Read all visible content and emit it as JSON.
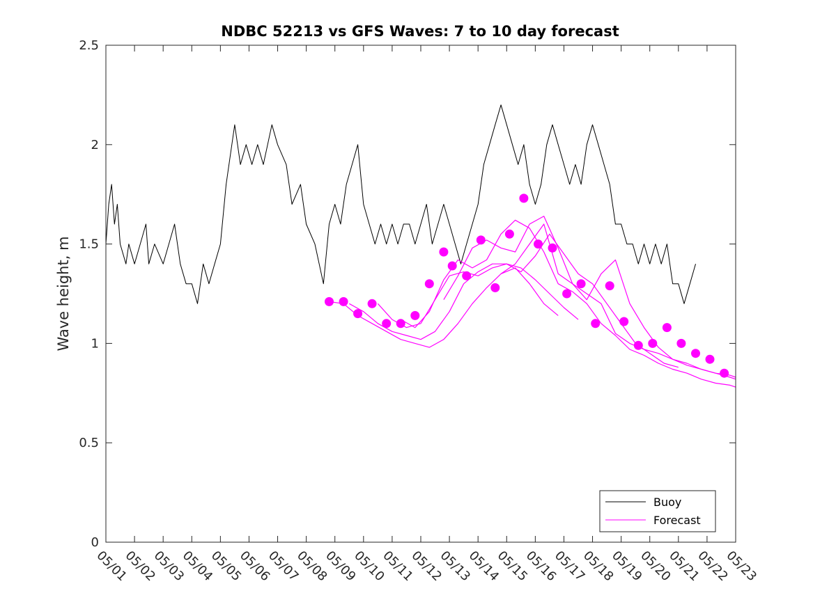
{
  "chart_data": {
    "type": "line",
    "title": "NDBC 52213 vs GFS Waves: 7 to 10 day forecast",
    "xlabel": "",
    "ylabel": "Wave height, m",
    "xlim": [
      0,
      22
    ],
    "ylim": [
      0,
      2.5
    ],
    "x_tick_labels": [
      "05/01",
      "05/02",
      "05/03",
      "05/04",
      "05/05",
      "05/06",
      "05/07",
      "05/08",
      "05/09",
      "05/10",
      "05/11",
      "05/12",
      "05/13",
      "05/14",
      "05/15",
      "05/16",
      "05/17",
      "05/18",
      "05/19",
      "05/20",
      "05/21",
      "05/22",
      "05/23"
    ],
    "y_ticks": [
      0,
      0.5,
      1,
      1.5,
      2,
      2.5
    ],
    "y_tick_labels": [
      "0",
      "0.5",
      "1",
      "1.5",
      "2",
      "2.5"
    ],
    "grid": false,
    "legend_position": "bottom-right",
    "series": [
      {
        "name": "Buoy",
        "color": "#000000",
        "style": "line",
        "points": [
          [
            0,
            1.5
          ],
          [
            0.1,
            1.7
          ],
          [
            0.2,
            1.8
          ],
          [
            0.3,
            1.6
          ],
          [
            0.4,
            1.7
          ],
          [
            0.5,
            1.5
          ],
          [
            0.7,
            1.4
          ],
          [
            0.8,
            1.5
          ],
          [
            1,
            1.4
          ],
          [
            1.2,
            1.5
          ],
          [
            1.4,
            1.6
          ],
          [
            1.5,
            1.4
          ],
          [
            1.7,
            1.5
          ],
          [
            2,
            1.4
          ],
          [
            2.2,
            1.5
          ],
          [
            2.4,
            1.6
          ],
          [
            2.6,
            1.4
          ],
          [
            2.8,
            1.3
          ],
          [
            3,
            1.3
          ],
          [
            3.2,
            1.2
          ],
          [
            3.4,
            1.4
          ],
          [
            3.6,
            1.3
          ],
          [
            3.8,
            1.4
          ],
          [
            4,
            1.5
          ],
          [
            4.2,
            1.8
          ],
          [
            4.4,
            2.0
          ],
          [
            4.5,
            2.1
          ],
          [
            4.7,
            1.9
          ],
          [
            4.9,
            2.0
          ],
          [
            5.1,
            1.9
          ],
          [
            5.3,
            2.0
          ],
          [
            5.5,
            1.9
          ],
          [
            5.8,
            2.1
          ],
          [
            6,
            2.0
          ],
          [
            6.3,
            1.9
          ],
          [
            6.5,
            1.7
          ],
          [
            6.8,
            1.8
          ],
          [
            7,
            1.6
          ],
          [
            7.3,
            1.5
          ],
          [
            7.6,
            1.3
          ],
          [
            7.8,
            1.6
          ],
          [
            8,
            1.7
          ],
          [
            8.2,
            1.6
          ],
          [
            8.4,
            1.8
          ],
          [
            8.6,
            1.9
          ],
          [
            8.8,
            2.0
          ],
          [
            9,
            1.7
          ],
          [
            9.2,
            1.6
          ],
          [
            9.4,
            1.5
          ],
          [
            9.6,
            1.6
          ],
          [
            9.8,
            1.5
          ],
          [
            10,
            1.6
          ],
          [
            10.2,
            1.5
          ],
          [
            10.4,
            1.6
          ],
          [
            10.6,
            1.6
          ],
          [
            10.8,
            1.5
          ],
          [
            11,
            1.6
          ],
          [
            11.2,
            1.7
          ],
          [
            11.4,
            1.5
          ],
          [
            11.6,
            1.6
          ],
          [
            11.8,
            1.7
          ],
          [
            12,
            1.6
          ],
          [
            12.2,
            1.5
          ],
          [
            12.4,
            1.4
          ],
          [
            12.6,
            1.5
          ],
          [
            12.8,
            1.6
          ],
          [
            13,
            1.7
          ],
          [
            13.2,
            1.9
          ],
          [
            13.4,
            2.0
          ],
          [
            13.6,
            2.1
          ],
          [
            13.8,
            2.2
          ],
          [
            14,
            2.1
          ],
          [
            14.2,
            2.0
          ],
          [
            14.4,
            1.9
          ],
          [
            14.6,
            2.0
          ],
          [
            14.8,
            1.8
          ],
          [
            15,
            1.7
          ],
          [
            15.2,
            1.8
          ],
          [
            15.4,
            2.0
          ],
          [
            15.6,
            2.1
          ],
          [
            15.8,
            2.0
          ],
          [
            16,
            1.9
          ],
          [
            16.2,
            1.8
          ],
          [
            16.4,
            1.9
          ],
          [
            16.6,
            1.8
          ],
          [
            16.8,
            2.0
          ],
          [
            17,
            2.1
          ],
          [
            17.2,
            2.0
          ],
          [
            17.4,
            1.9
          ],
          [
            17.6,
            1.8
          ],
          [
            17.8,
            1.6
          ],
          [
            18,
            1.6
          ],
          [
            18.2,
            1.5
          ],
          [
            18.4,
            1.5
          ],
          [
            18.6,
            1.4
          ],
          [
            18.8,
            1.5
          ],
          [
            19,
            1.4
          ],
          [
            19.2,
            1.5
          ],
          [
            19.4,
            1.4
          ],
          [
            19.6,
            1.5
          ],
          [
            19.8,
            1.3
          ],
          [
            20,
            1.3
          ],
          [
            20.2,
            1.2
          ],
          [
            20.4,
            1.3
          ],
          [
            20.6,
            1.4
          ]
        ]
      },
      {
        "name": "Forecast",
        "color": "#ff00ff",
        "style": "lines+markers",
        "traces": [
          [
            [
              7.8,
              1.21
            ],
            [
              8.3,
              1.2
            ],
            [
              8.8,
              1.14
            ],
            [
              9.3,
              1.1
            ],
            [
              9.8,
              1.06
            ],
            [
              10.3,
              1.02
            ],
            [
              10.8,
              1.0
            ],
            [
              11.3,
              0.98
            ],
            [
              11.8,
              1.02
            ],
            [
              12.3,
              1.1
            ],
            [
              12.8,
              1.2
            ],
            [
              13.3,
              1.28
            ],
            [
              13.8,
              1.35
            ],
            [
              14.3,
              1.38
            ],
            [
              14.8,
              1.3
            ],
            [
              15.3,
              1.2
            ],
            [
              15.8,
              1.14
            ]
          ],
          [
            [
              8.5,
              1.2
            ],
            [
              9,
              1.16
            ],
            [
              9.5,
              1.1
            ],
            [
              10,
              1.06
            ],
            [
              10.5,
              1.04
            ],
            [
              11,
              1.02
            ],
            [
              11.5,
              1.06
            ],
            [
              12,
              1.16
            ],
            [
              12.5,
              1.3
            ],
            [
              13,
              1.36
            ],
            [
              13.5,
              1.4
            ],
            [
              14,
              1.4
            ],
            [
              14.5,
              1.38
            ],
            [
              15,
              1.32
            ],
            [
              15.5,
              1.25
            ],
            [
              16,
              1.18
            ],
            [
              16.5,
              1.12
            ]
          ],
          [
            [
              9.5,
              1.2
            ],
            [
              10,
              1.12
            ],
            [
              10.5,
              1.08
            ],
            [
              11,
              1.1
            ],
            [
              11.5,
              1.22
            ],
            [
              12,
              1.34
            ],
            [
              12.5,
              1.36
            ],
            [
              13,
              1.34
            ],
            [
              13.5,
              1.38
            ],
            [
              14,
              1.4
            ],
            [
              14.5,
              1.36
            ],
            [
              15,
              1.44
            ],
            [
              15.5,
              1.55
            ],
            [
              16,
              1.45
            ],
            [
              16.5,
              1.35
            ],
            [
              17,
              1.3
            ],
            [
              17.5,
              1.2
            ],
            [
              18,
              1.1
            ],
            [
              18.5,
              1.0
            ],
            [
              19,
              0.95
            ],
            [
              19.5,
              0.9
            ],
            [
              20,
              0.88
            ]
          ],
          [
            [
              10.3,
              1.12
            ],
            [
              10.8,
              1.08
            ],
            [
              11.3,
              1.16
            ],
            [
              11.8,
              1.32
            ],
            [
              12.3,
              1.42
            ],
            [
              12.8,
              1.38
            ],
            [
              13.3,
              1.42
            ],
            [
              13.8,
              1.55
            ],
            [
              14.3,
              1.62
            ],
            [
              14.8,
              1.58
            ],
            [
              15.3,
              1.46
            ],
            [
              15.8,
              1.3
            ],
            [
              16.3,
              1.26
            ],
            [
              16.8,
              1.2
            ],
            [
              17.3,
              1.1
            ],
            [
              17.8,
              1.04
            ],
            [
              18.3,
              0.97
            ],
            [
              18.8,
              0.94
            ],
            [
              19.3,
              0.9
            ],
            [
              19.8,
              0.87
            ],
            [
              20.3,
              0.85
            ],
            [
              20.8,
              0.82
            ],
            [
              21.3,
              0.8
            ],
            [
              21.8,
              0.79
            ],
            [
              22,
              0.78
            ]
          ],
          [
            [
              11.8,
              1.22
            ],
            [
              12.3,
              1.34
            ],
            [
              12.8,
              1.48
            ],
            [
              13.3,
              1.52
            ],
            [
              13.8,
              1.48
            ],
            [
              14.3,
              1.46
            ],
            [
              14.8,
              1.6
            ],
            [
              15.3,
              1.64
            ],
            [
              15.8,
              1.48
            ],
            [
              16.3,
              1.3
            ],
            [
              16.8,
              1.22
            ],
            [
              17.3,
              1.35
            ],
            [
              17.8,
              1.42
            ],
            [
              18.3,
              1.2
            ],
            [
              18.8,
              1.08
            ],
            [
              19.3,
              0.98
            ],
            [
              19.8,
              0.92
            ],
            [
              20.3,
              0.9
            ],
            [
              20.8,
              0.87
            ],
            [
              21.3,
              0.85
            ],
            [
              21.8,
              0.83
            ],
            [
              22,
              0.82
            ]
          ],
          [
            [
              13.8,
              1.35
            ],
            [
              14.3,
              1.4
            ],
            [
              14.8,
              1.5
            ],
            [
              15.3,
              1.6
            ],
            [
              15.8,
              1.35
            ],
            [
              16.3,
              1.3
            ],
            [
              16.8,
              1.25
            ],
            [
              17.3,
              1.2
            ],
            [
              17.8,
              1.05
            ],
            [
              18.3,
              1.0
            ],
            [
              18.8,
              0.97
            ],
            [
              19.3,
              0.95
            ],
            [
              19.8,
              0.92
            ],
            [
              20.3,
              0.89
            ],
            [
              20.8,
              0.87
            ],
            [
              21.3,
              0.85
            ],
            [
              21.8,
              0.84
            ],
            [
              22,
              0.83
            ]
          ]
        ],
        "markers": [
          [
            7.8,
            1.21
          ],
          [
            8.3,
            1.21
          ],
          [
            8.8,
            1.15
          ],
          [
            9.3,
            1.2
          ],
          [
            9.8,
            1.1
          ],
          [
            10.3,
            1.1
          ],
          [
            10.8,
            1.14
          ],
          [
            11.3,
            1.3
          ],
          [
            11.8,
            1.46
          ],
          [
            12.1,
            1.39
          ],
          [
            12.6,
            1.34
          ],
          [
            13.1,
            1.52
          ],
          [
            13.6,
            1.28
          ],
          [
            14.1,
            1.55
          ],
          [
            14.6,
            1.73
          ],
          [
            15.1,
            1.5
          ],
          [
            15.6,
            1.48
          ],
          [
            16.1,
            1.25
          ],
          [
            16.6,
            1.3
          ],
          [
            17.1,
            1.1
          ],
          [
            17.6,
            1.29
          ],
          [
            18.1,
            1.11
          ],
          [
            18.6,
            0.99
          ],
          [
            19.1,
            1.0
          ],
          [
            19.6,
            1.08
          ],
          [
            20.1,
            1.0
          ],
          [
            20.6,
            0.95
          ],
          [
            21.1,
            0.92
          ],
          [
            21.6,
            0.85
          ]
        ]
      }
    ]
  }
}
